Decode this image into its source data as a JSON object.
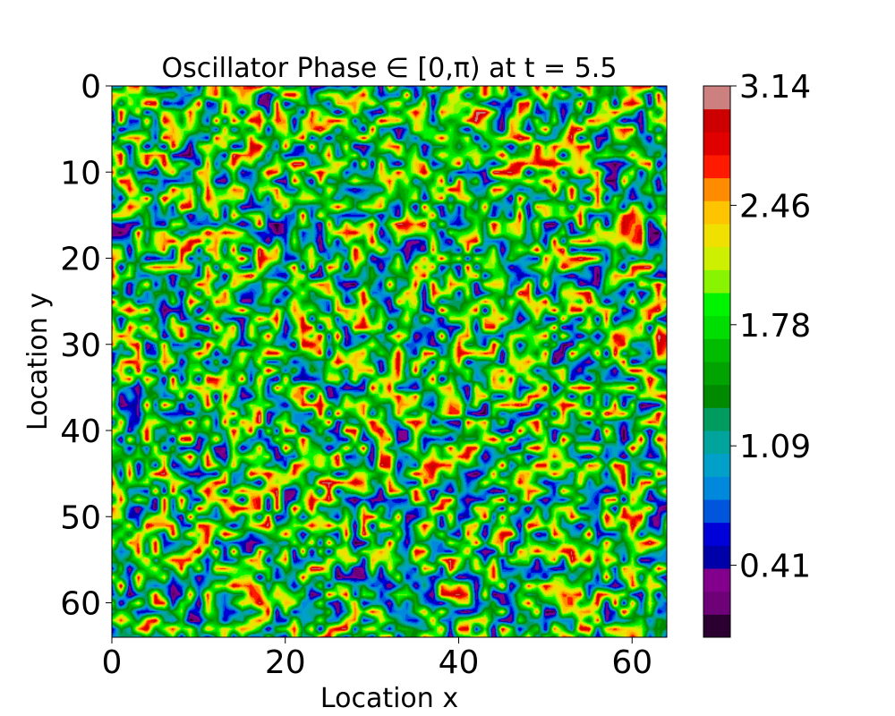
{
  "chart_data": {
    "type": "heatmap",
    "title": "Oscillator Phase ∈ [0,π) at t = 5.5",
    "xlabel": "Location x",
    "ylabel": "Location y",
    "xlim": [
      0,
      64
    ],
    "ylim": [
      64,
      0
    ],
    "x_ticks": [
      "0",
      "20",
      "40",
      "60"
    ],
    "y_ticks": [
      "0",
      "10",
      "20",
      "30",
      "40",
      "50",
      "60"
    ],
    "x_tick_values": [
      0,
      20,
      40,
      60
    ],
    "y_tick_values": [
      0,
      10,
      20,
      30,
      40,
      50,
      60
    ],
    "grid_size": [
      64,
      64
    ],
    "value_range": [
      0,
      3.14
    ],
    "colormap": "nipy_spectral",
    "colorbar": {
      "ticks": [
        "0.41",
        "1.09",
        "1.78",
        "2.46",
        "3.14"
      ],
      "tick_values": [
        0.41,
        1.09,
        1.78,
        2.46,
        3.14
      ],
      "levels": 23
    },
    "colors": [
      "#2b0030",
      "#6e0078",
      "#82008c",
      "#0000a8",
      "#0000d8",
      "#0055dd",
      "#0088dd",
      "#00a0c8",
      "#00a49c",
      "#009b5e",
      "#008a00",
      "#00a300",
      "#00bb00",
      "#00dd00",
      "#00f400",
      "#88f400",
      "#ccf000",
      "#f0e000",
      "#ffc400",
      "#ff8c00",
      "#ff1a00",
      "#e00000",
      "#cc0000",
      "#cc8080"
    ]
  }
}
